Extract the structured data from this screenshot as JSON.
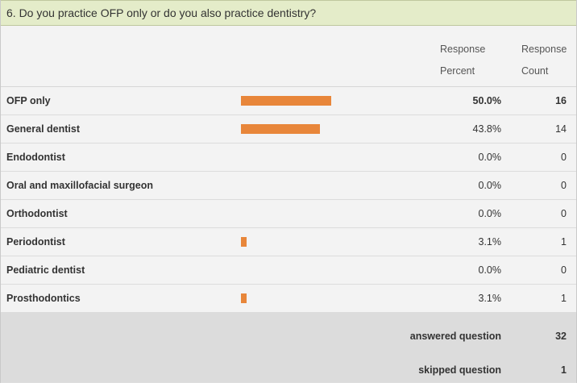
{
  "question": {
    "title": "6. Do you practice OFP only or do you also practice dentistry?"
  },
  "columns": {
    "percent_header_line1": "Response",
    "percent_header_line2": "Percent",
    "count_header_line1": "Response",
    "count_header_line2": "Count"
  },
  "rows": [
    {
      "label": "OFP only",
      "percent": "50.0%",
      "count": "16",
      "fraction": 0.5,
      "bold": true
    },
    {
      "label": "General dentist",
      "percent": "43.8%",
      "count": "14",
      "fraction": 0.438,
      "bold": false
    },
    {
      "label": "Endodontist",
      "percent": "0.0%",
      "count": "0",
      "fraction": 0.0,
      "bold": false
    },
    {
      "label": "Oral and maxillofacial surgeon",
      "percent": "0.0%",
      "count": "0",
      "fraction": 0.0,
      "bold": false
    },
    {
      "label": "Orthodontist",
      "percent": "0.0%",
      "count": "0",
      "fraction": 0.0,
      "bold": false
    },
    {
      "label": "Periodontist",
      "percent": "3.1%",
      "count": "1",
      "fraction": 0.031,
      "bold": false
    },
    {
      "label": "Pediatric dentist",
      "percent": "0.0%",
      "count": "0",
      "fraction": 0.0,
      "bold": false
    },
    {
      "label": "Prosthodontics",
      "percent": "3.1%",
      "count": "1",
      "fraction": 0.031,
      "bold": false
    }
  ],
  "footer": {
    "answered_label": "answered question",
    "answered_value": "32",
    "skipped_label": "skipped question",
    "skipped_value": "1"
  },
  "colors": {
    "bar": "#e8863a",
    "header_bg": "#e4ecc9",
    "footer_bg": "#dcdcdc"
  }
}
